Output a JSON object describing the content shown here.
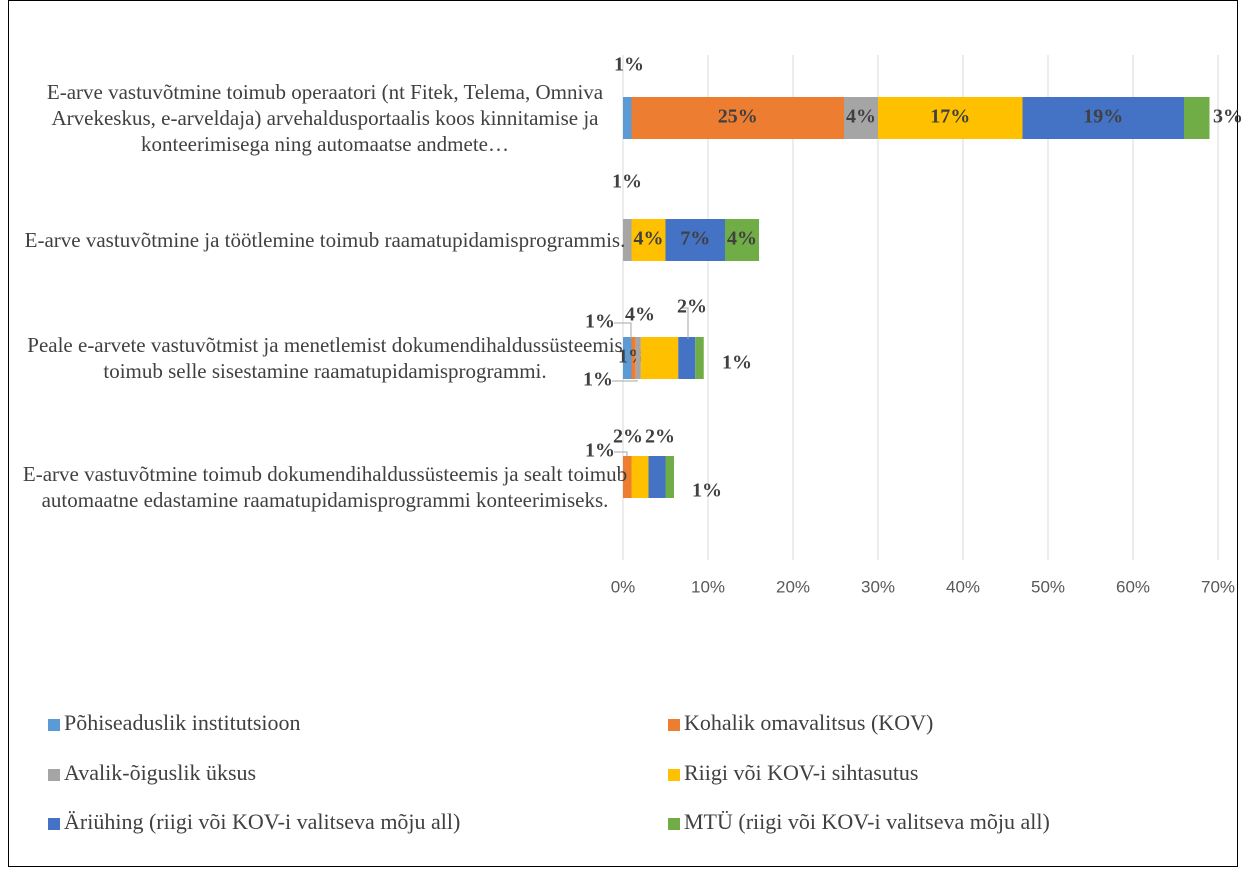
{
  "chart_data": {
    "type": "stacked-bar-horizontal",
    "categories": [
      "E-arve vastuvõtmine toimub operaatori (nt Fitek, Telema, Omniva Arvekeskus, e-arveldaja) arvehaldusportaalis koos kinnitamise ja konteerimisega ning automaatse andmete…",
      "E-arve vastuvõtmine ja töötlemine toimub raamatupidamisprogrammis.",
      "Peale e-arvete vastuvõtmist ja menetlemist dokumendihaldussüsteemis toimub selle sisestamine raamatupidamisprogrammi.",
      "E-arve vastuvõtmine toimub dokumendihaldussüsteemis ja sealt toimub automaatne edastamine raamatupidamisprogrammi konteerimiseks."
    ],
    "series": [
      {
        "name": "Põhiseaduslik institutsioon",
        "color": "#5b9bd5",
        "values": [
          1,
          null,
          1,
          null
        ],
        "value_labels": [
          "1%",
          null,
          "1%",
          null
        ]
      },
      {
        "name": "Kohalik omavalitsus (KOV)",
        "color": "#ed7d31",
        "values": [
          25,
          null,
          0.5,
          1
        ],
        "value_labels": [
          "25%",
          null,
          "1%",
          "1%"
        ]
      },
      {
        "name": "Avalik-õiguslik üksus",
        "color": "#a5a5a5",
        "values": [
          4,
          1,
          0.6,
          null
        ],
        "value_labels": [
          "4%",
          "1%",
          "1%",
          null
        ]
      },
      {
        "name": "Riigi või KOV-i sihtasutus",
        "color": "#ffc000",
        "values": [
          17,
          4,
          4.4,
          2
        ],
        "value_labels": [
          "17%",
          "4%",
          "4%",
          "2%"
        ]
      },
      {
        "name": "Äriühing (riigi või KOV-i valitseva mõju all)",
        "color": "#4472c4",
        "values": [
          19,
          7,
          2,
          2
        ],
        "value_labels": [
          "19%",
          "7%",
          "2%",
          "2%"
        ]
      },
      {
        "name": "MTÜ (riigi või KOV-i valitseva mõju all)",
        "color": "#70ad47",
        "values": [
          3,
          4,
          1,
          1
        ],
        "value_labels": [
          "3%",
          "4%",
          "1%",
          "1%"
        ]
      }
    ],
    "xlim": [
      0,
      70
    ],
    "xticks": [
      {
        "value": 0,
        "label": "0%"
      },
      {
        "value": 10,
        "label": "10%"
      },
      {
        "value": 20,
        "label": "20%"
      },
      {
        "value": 30,
        "label": "30%"
      },
      {
        "value": 40,
        "label": "40%"
      },
      {
        "value": 50,
        "label": "50%"
      },
      {
        "value": 60,
        "label": "60%"
      },
      {
        "value": 70,
        "label": "70%"
      }
    ],
    "grid": true,
    "legend": "bottom"
  }
}
